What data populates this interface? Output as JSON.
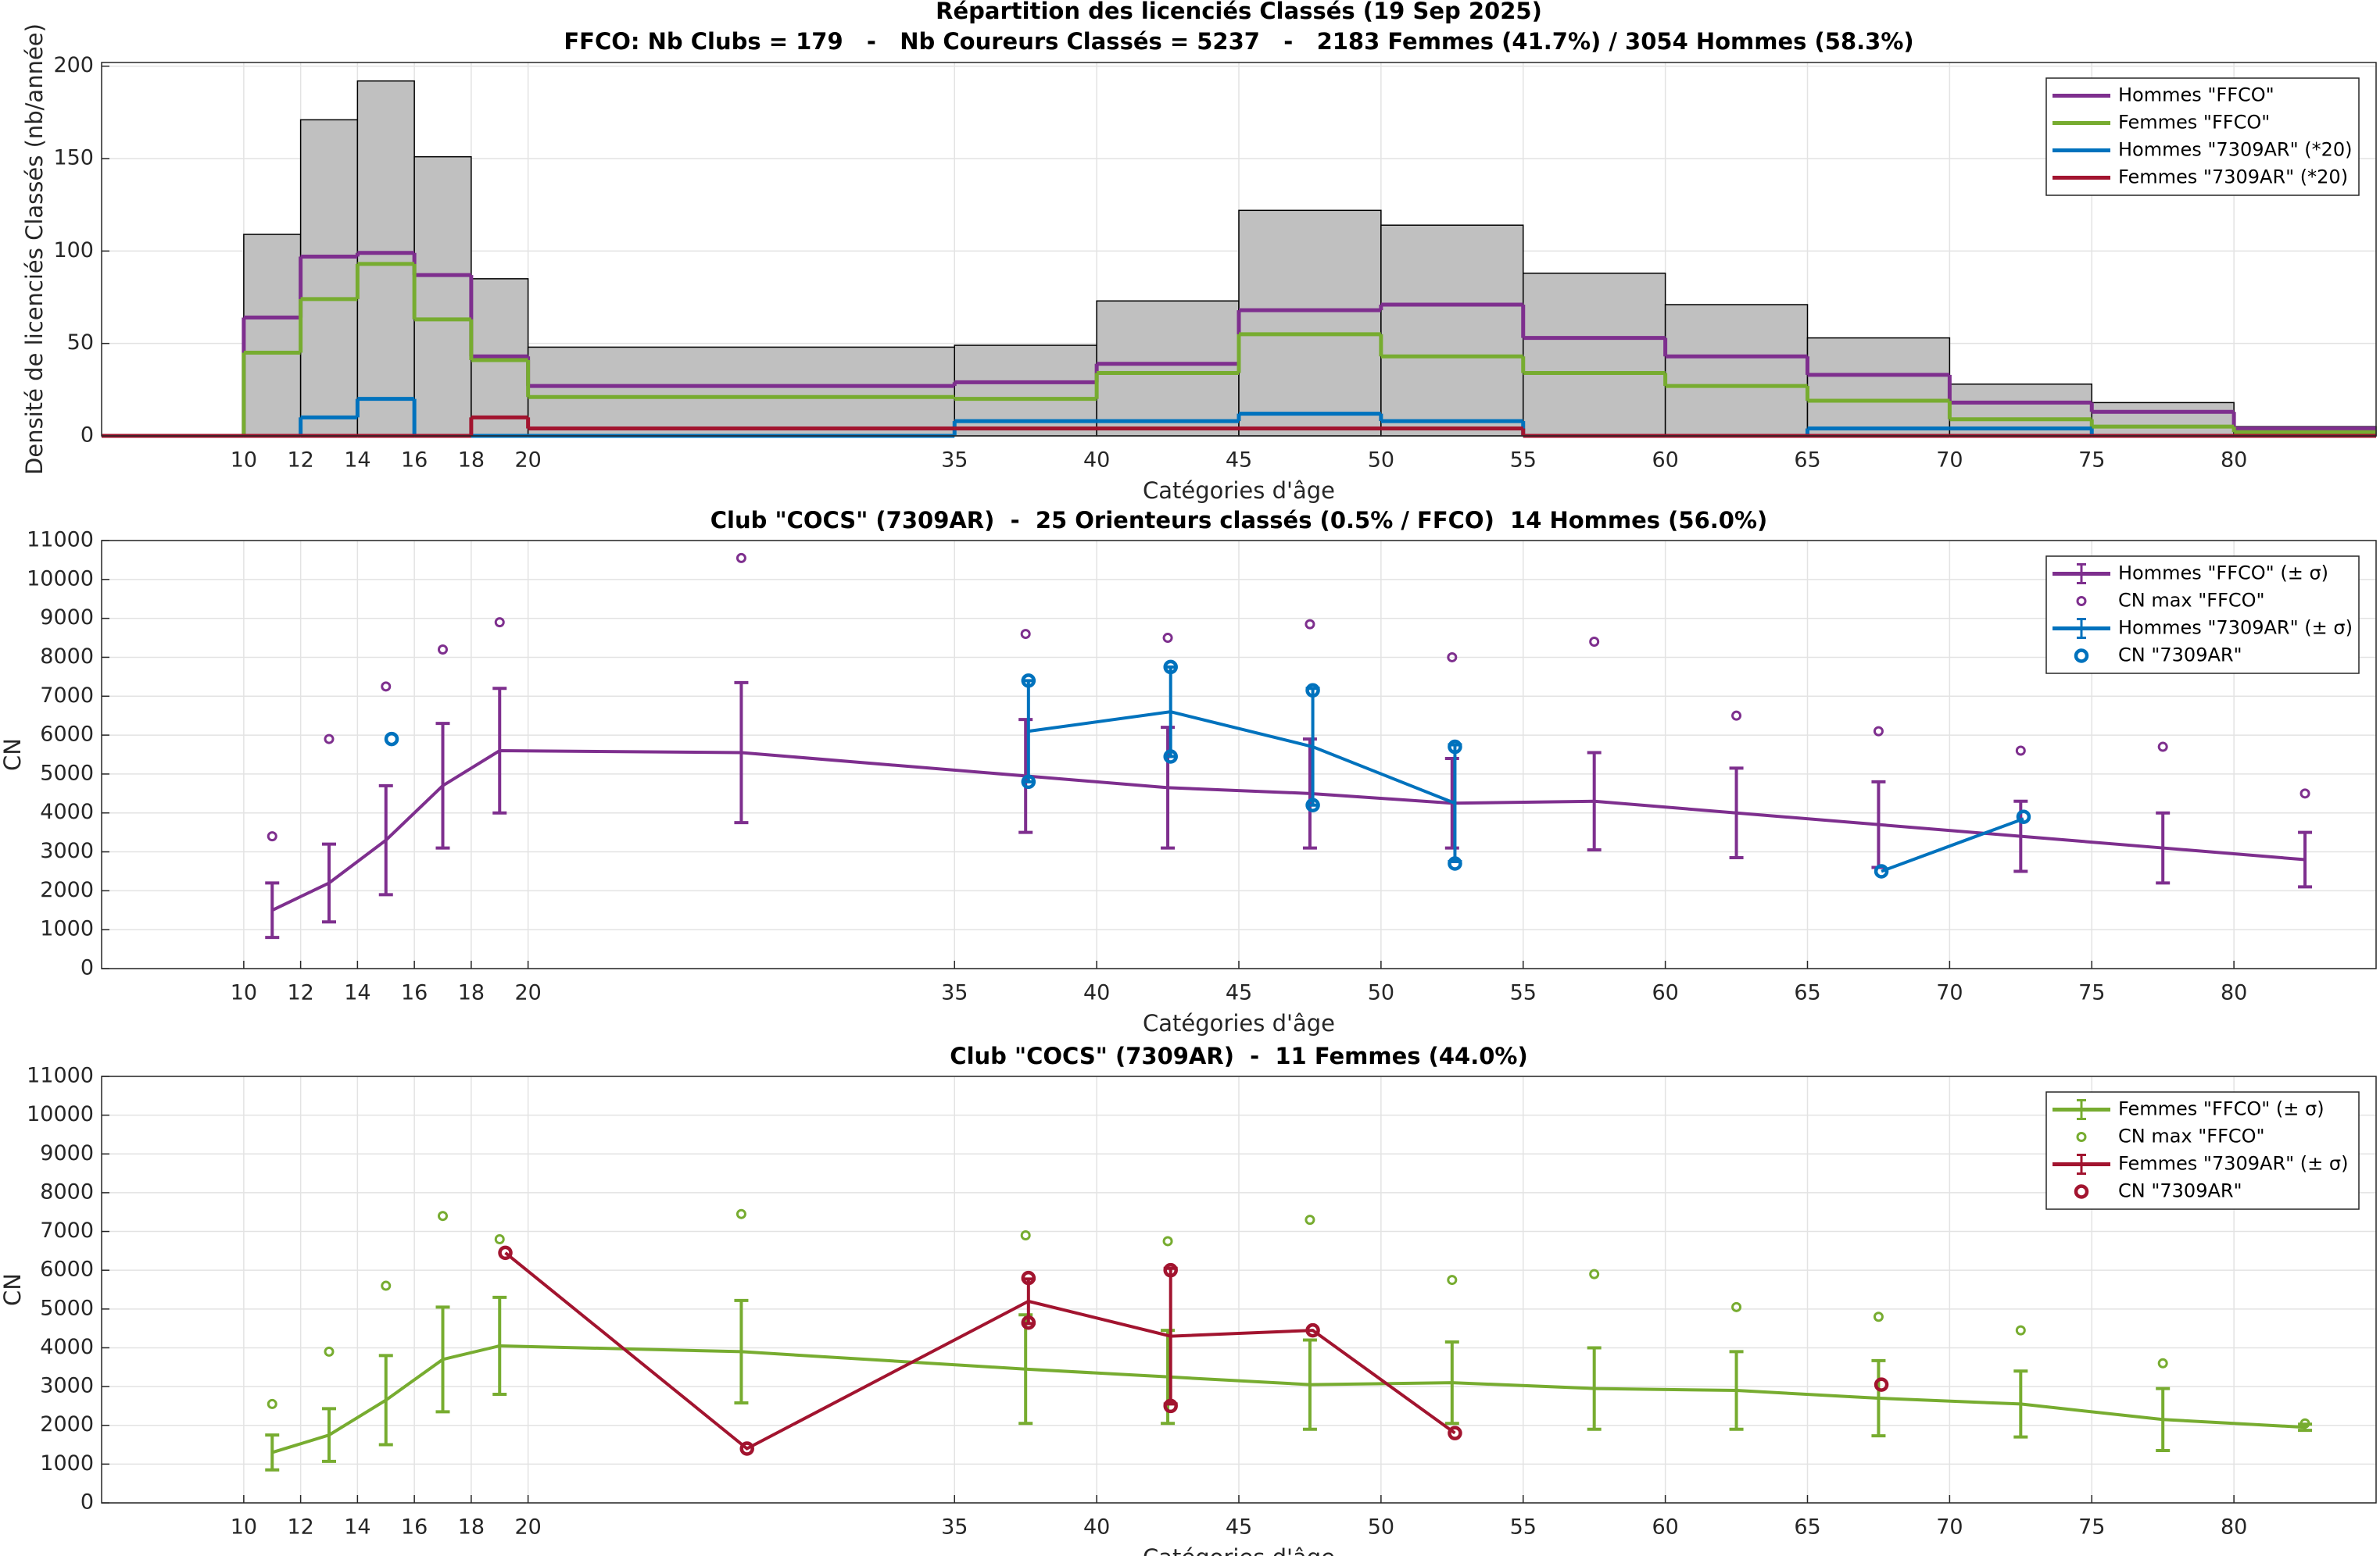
{
  "chart_data": [
    {
      "type": "histogram",
      "title": "Répartition des licenciés Classés (19 Sep 2025)",
      "subtitle": "FFCO: Nb Clubs = 179   -   Nb Coureurs Classés = 5237   -   2183 Femmes (41.7%) / 3054 Hommes (58.3%)",
      "xlabel": "Catégories d'âge",
      "ylabel": "Densité de licenciés Classés (nb/année)",
      "bins": [
        5,
        10,
        12,
        14,
        16,
        18,
        20,
        35,
        40,
        45,
        50,
        55,
        60,
        65,
        70,
        75,
        80,
        85
      ],
      "counts": [
        0,
        109,
        171,
        192,
        151,
        85,
        48,
        49,
        73,
        122,
        114,
        88,
        71,
        53,
        28,
        18,
        5
      ],
      "color": "#c0c0c0",
      "series": [
        {
          "name": "Hommes \"FFCO\"",
          "color": "#7e2f8e",
          "values": [
            0,
            64,
            97,
            99,
            87,
            43,
            27,
            29,
            39,
            68,
            71,
            53,
            43,
            33,
            18,
            13,
            4
          ]
        },
        {
          "name": "Femmes \"FFCO\"",
          "color": "#77ac30",
          "values": [
            0,
            45,
            74,
            93,
            63,
            41,
            21,
            20,
            34,
            55,
            43,
            34,
            27,
            19,
            9,
            5,
            2
          ]
        },
        {
          "name": "Hommes \"7309AR\" (*20)",
          "color": "#0072bd",
          "values": [
            0,
            0,
            10,
            20,
            0,
            0,
            0,
            8,
            8,
            12,
            8,
            0,
            0,
            4,
            4,
            0,
            0
          ]
        },
        {
          "name": "Femmes \"7309AR\" (*20)",
          "color": "#a2142f",
          "values": [
            0,
            0,
            0,
            0,
            0,
            10,
            4,
            4,
            4,
            4,
            4,
            0,
            0,
            0,
            0,
            0,
            0
          ]
        }
      ],
      "xlim": [
        5,
        85
      ],
      "xticks": [
        10,
        12,
        14,
        16,
        18,
        20,
        35,
        40,
        45,
        50,
        55,
        60,
        65,
        70,
        75,
        80
      ],
      "ylim": [
        0,
        202
      ],
      "yticks": [
        0,
        50,
        100,
        150,
        200
      ],
      "grid": true,
      "legend": "northeast"
    },
    {
      "type": "line",
      "title": "Club \"COCS\" (7309AR)  -  25 Orienteurs classés (0.5% / FFCO)  14 Hommes (56.0%)",
      "xlabel": "Catégories d'âge",
      "ylabel": "CN",
      "series": [
        {
          "name": "Hommes \"FFCO\" (± σ)",
          "color": "#7e2f8e",
          "style": "errorbar",
          "x": [
            11,
            13,
            15,
            17,
            19,
            27.5,
            37.5,
            42.5,
            47.5,
            52.5,
            57.5,
            62.5,
            67.5,
            72.5,
            77.5,
            82.5
          ],
          "values": [
            1500,
            2200,
            3300,
            4700,
            5600,
            5550,
            4950,
            4650,
            4500,
            4250,
            4300,
            4000,
            3700,
            3400,
            3100,
            2800
          ],
          "errors": [
            700,
            1000,
            1400,
            1600,
            1600,
            1800,
            1450,
            1550,
            1400,
            1150,
            1250,
            1150,
            1100,
            900,
            900,
            700
          ]
        },
        {
          "name": "CN max \"FFCO\"",
          "color": "#7e2f8e",
          "style": "marker",
          "x": [
            11,
            13,
            15,
            17,
            19,
            27.5,
            37.5,
            42.5,
            47.5,
            52.5,
            57.5,
            62.5,
            67.5,
            72.5,
            77.5,
            82.5
          ],
          "values": [
            3400,
            5900,
            7250,
            8200,
            8900,
            10550,
            8600,
            8500,
            8850,
            8000,
            8400,
            6500,
            6100,
            5600,
            5700,
            4500
          ]
        },
        {
          "name": "Hommes \"7309AR\" (± σ)",
          "color": "#0072bd",
          "style": "errorbar",
          "x": [
            37.6,
            42.6,
            47.6,
            52.6,
            57.6,
            62.6,
            67.6,
            72.6
          ],
          "values": [
            6100,
            6600,
            5700,
            4250,
            null,
            null,
            2500,
            3850
          ],
          "errors": [
            1300,
            1150,
            1500,
            1500,
            null,
            null,
            null,
            null
          ]
        },
        {
          "name": "CN \"7309AR\"",
          "color": "#0072bd",
          "style": "club-marker",
          "x": [
            15.2,
            37.6,
            37.6,
            42.6,
            42.6,
            47.6,
            47.6,
            52.6,
            52.6,
            67.6,
            72.6
          ],
          "values": [
            5900,
            7400,
            4800,
            7750,
            5450,
            7150,
            4200,
            5700,
            2700,
            2500,
            3900
          ]
        }
      ],
      "xlim": [
        5,
        85
      ],
      "xticks": [
        10,
        12,
        14,
        16,
        18,
        20,
        35,
        40,
        45,
        50,
        55,
        60,
        65,
        70,
        75,
        80
      ],
      "ylim": [
        0,
        11000
      ],
      "yticks": [
        0,
        1000,
        2000,
        3000,
        4000,
        5000,
        6000,
        7000,
        8000,
        9000,
        10000,
        11000
      ],
      "grid": true,
      "legend": "northeast"
    },
    {
      "type": "line",
      "title": "Club \"COCS\" (7309AR)  -  11 Femmes (44.0%)",
      "xlabel": "Catégories d'âge",
      "ylabel": "CN",
      "series": [
        {
          "name": "Femmes \"FFCO\" (± σ)",
          "color": "#77ac30",
          "style": "errorbar",
          "x": [
            11,
            13,
            15,
            17,
            19,
            27.5,
            37.5,
            42.5,
            47.5,
            52.5,
            57.5,
            62.5,
            67.5,
            72.5,
            77.5,
            82.5
          ],
          "values": [
            1300,
            1750,
            2650,
            3700,
            4050,
            3900,
            3450,
            3250,
            3050,
            3100,
            2950,
            2900,
            2700,
            2550,
            2150,
            1950
          ],
          "errors": [
            450,
            680,
            1150,
            1350,
            1250,
            1320,
            1400,
            1200,
            1150,
            1050,
            1050,
            1000,
            970,
            850,
            800,
            80
          ]
        },
        {
          "name": "CN max \"FFCO\"",
          "color": "#77ac30",
          "style": "marker",
          "x": [
            11,
            13,
            15,
            17,
            19,
            27.5,
            37.5,
            42.5,
            47.5,
            52.5,
            57.5,
            62.5,
            67.5,
            72.5,
            77.5,
            82.5
          ],
          "values": [
            2550,
            3900,
            5600,
            7400,
            6800,
            7450,
            6900,
            6750,
            7300,
            5750,
            5900,
            5050,
            4800,
            4450,
            3600,
            2050
          ]
        },
        {
          "name": "Femmes \"7309AR\" (± σ)",
          "color": "#a2142f",
          "style": "errorbar",
          "x": [
            19.2,
            27.7,
            37.6,
            42.6,
            47.6,
            52.6,
            57.6,
            62.6,
            67.6
          ],
          "values": [
            6450,
            1400,
            5200,
            4300,
            4450,
            1800,
            null,
            null,
            3050
          ],
          "errors": [
            null,
            null,
            575,
            1750,
            null,
            null,
            null,
            null,
            null
          ]
        },
        {
          "name": "CN \"7309AR\"",
          "color": "#a2142f",
          "style": "club-marker",
          "x": [
            19.2,
            27.7,
            37.6,
            37.6,
            42.6,
            42.6,
            47.6,
            52.6,
            67.6
          ],
          "values": [
            6450,
            1400,
            5800,
            4650,
            6000,
            2500,
            4450,
            1800,
            3050
          ]
        }
      ],
      "xlim": [
        5,
        85
      ],
      "xticks": [
        10,
        12,
        14,
        16,
        18,
        20,
        35,
        40,
        45,
        50,
        55,
        60,
        65,
        70,
        75,
        80
      ],
      "ylim": [
        0,
        11000
      ],
      "yticks": [
        0,
        1000,
        2000,
        3000,
        4000,
        5000,
        6000,
        7000,
        8000,
        9000,
        10000,
        11000
      ],
      "grid": true,
      "legend": "northeast"
    }
  ]
}
